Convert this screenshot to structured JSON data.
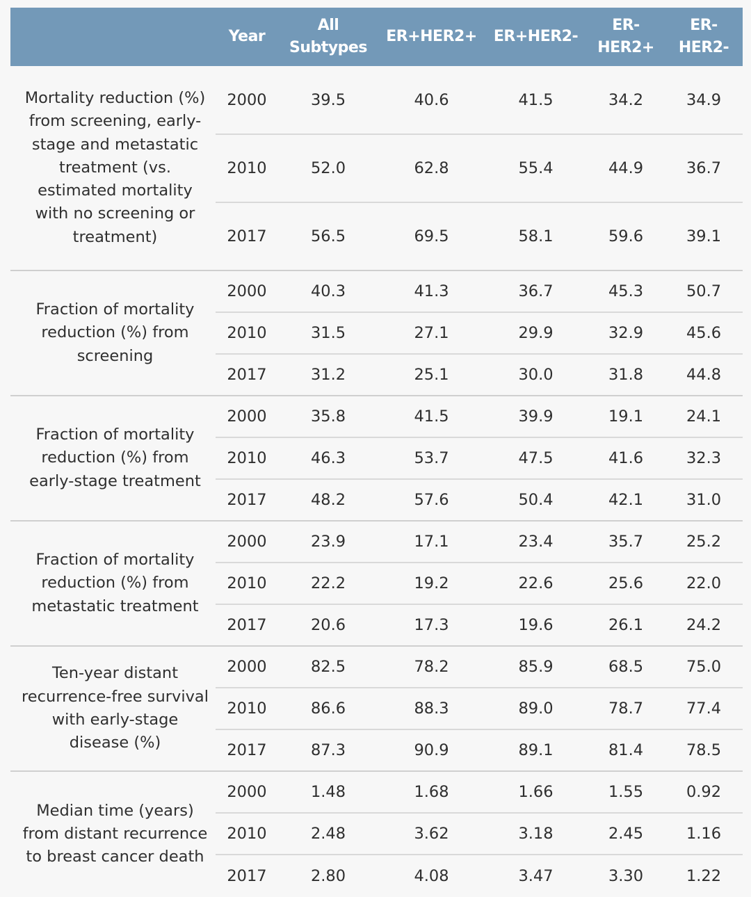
{
  "header": {
    "metric": "",
    "year": "Year",
    "all_line1": "All",
    "all_line2": "Subtypes",
    "er_pos_her2_pos": "ER+HER2+",
    "er_pos_her2_neg": "ER+HER2-",
    "er_neg_her2_pos_line1": "ER-",
    "er_neg_her2_pos_line2": "HER2+",
    "er_neg_her2_neg_line1": "ER-",
    "er_neg_her2_neg_line2": "HER2-"
  },
  "groups": [
    {
      "metric": "Mortality reduction (%) from screening, early-stage and metastatic treatment (vs. estimated mortality with no screening or treatment)",
      "rows": [
        {
          "year": "2000",
          "all": "39.5",
          "pp": "40.6",
          "pn": "41.5",
          "np": "34.2",
          "nn": "34.9"
        },
        {
          "year": "2010",
          "all": "52.0",
          "pp": "62.8",
          "pn": "55.4",
          "np": "44.9",
          "nn": "36.7"
        },
        {
          "year": "2017",
          "all": "56.5",
          "pp": "69.5",
          "pn": "58.1",
          "np": "59.6",
          "nn": "39.1"
        }
      ]
    },
    {
      "metric": "Fraction of mortality reduction (%) from screening",
      "rows": [
        {
          "year": "2000",
          "all": "40.3",
          "pp": "41.3",
          "pn": "36.7",
          "np": "45.3",
          "nn": "50.7"
        },
        {
          "year": "2010",
          "all": "31.5",
          "pp": "27.1",
          "pn": "29.9",
          "np": "32.9",
          "nn": "45.6"
        },
        {
          "year": "2017",
          "all": "31.2",
          "pp": "25.1",
          "pn": "30.0",
          "np": "31.8",
          "nn": "44.8"
        }
      ]
    },
    {
      "metric": "Fraction of mortality reduction (%) from early-stage treatment",
      "rows": [
        {
          "year": "2000",
          "all": "35.8",
          "pp": "41.5",
          "pn": "39.9",
          "np": "19.1",
          "nn": "24.1"
        },
        {
          "year": "2010",
          "all": "46.3",
          "pp": "53.7",
          "pn": "47.5",
          "np": "41.6",
          "nn": "32.3"
        },
        {
          "year": "2017",
          "all": "48.2",
          "pp": "57.6",
          "pn": "50.4",
          "np": "42.1",
          "nn": "31.0"
        }
      ]
    },
    {
      "metric": "Fraction of mortality reduction (%) from metastatic treatment",
      "rows": [
        {
          "year": "2000",
          "all": "23.9",
          "pp": "17.1",
          "pn": "23.4",
          "np": "35.7",
          "nn": "25.2"
        },
        {
          "year": "2010",
          "all": "22.2",
          "pp": "19.2",
          "pn": "22.6",
          "np": "25.6",
          "nn": "22.0"
        },
        {
          "year": "2017",
          "all": "20.6",
          "pp": "17.3",
          "pn": "19.6",
          "np": "26.1",
          "nn": "24.2"
        }
      ]
    },
    {
      "metric": "Ten-year distant recurrence-free survival with early-stage disease (%)",
      "rows": [
        {
          "year": "2000",
          "all": "82.5",
          "pp": "78.2",
          "pn": "85.9",
          "np": "68.5",
          "nn": "75.0"
        },
        {
          "year": "2010",
          "all": "86.6",
          "pp": "88.3",
          "pn": "89.0",
          "np": "78.7",
          "nn": "77.4"
        },
        {
          "year": "2017",
          "all": "87.3",
          "pp": "90.9",
          "pn": "89.1",
          "np": "81.4",
          "nn": "78.5"
        }
      ]
    },
    {
      "metric": "Median time (years) from distant recurrence to breast cancer death",
      "rows": [
        {
          "year": "2000",
          "all": "1.48",
          "pp": "1.68",
          "pn": "1.66",
          "np": "1.55",
          "nn": "0.92"
        },
        {
          "year": "2010",
          "all": "2.48",
          "pp": "3.62",
          "pn": "3.18",
          "np": "2.45",
          "nn": "1.16"
        },
        {
          "year": "2017",
          "all": "2.80",
          "pp": "4.08",
          "pn": "3.47",
          "np": "3.30",
          "nn": "1.22"
        }
      ]
    }
  ]
}
